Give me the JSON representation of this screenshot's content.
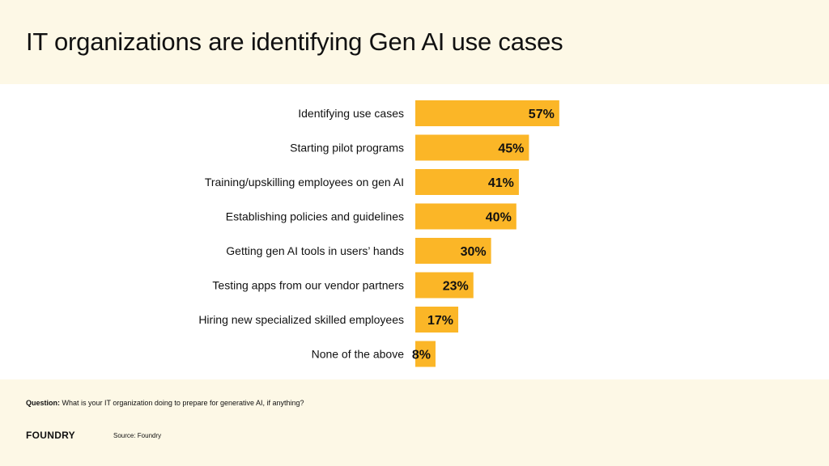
{
  "title": "IT organizations are identifying Gen AI use cases",
  "chart_data": {
    "type": "bar",
    "orientation": "horizontal",
    "categories": [
      "Identifying use cases",
      "Starting pilot programs",
      "Training/upskilling employees on gen AI",
      "Establishing policies and guidelines",
      "Getting gen AI tools in users’ hands",
      "Testing apps from our vendor partners",
      "Hiring new specialized skilled employees",
      "None of the above"
    ],
    "values": [
      57,
      45,
      41,
      40,
      30,
      23,
      17,
      8
    ],
    "value_labels": [
      "57%",
      "45%",
      "41%",
      "40%",
      "30%",
      "23%",
      "17%",
      "8%"
    ],
    "unit": "%",
    "bar_color": "#fbb627",
    "grid": false,
    "legend": "none"
  },
  "footer": {
    "question_label": "Question:",
    "question_text": "What is your IT organization doing to prepare for generative AI, if anything?",
    "logo_text": "FOUNDRY",
    "source": "Source: Foundry"
  },
  "colors": {
    "header_bg": "#fdf8e6",
    "chart_bg": "#ffffff",
    "bar": "#fbb627",
    "text": "#111111"
  }
}
